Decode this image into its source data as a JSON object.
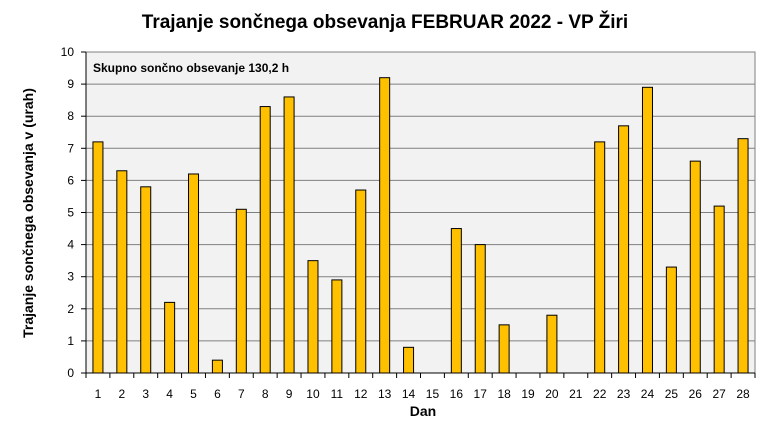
{
  "chart_data": {
    "type": "bar",
    "title": "Trajanje  sončnega obsevanja  FEBRUAR 2022 - VP Žiri",
    "xlabel": "Dan",
    "ylabel": "Trajanje  sončnega obsevanja  v (urah)",
    "annotation": "Skupno sončno obsevanje 130,2 h",
    "categories": [
      "1",
      "2",
      "3",
      "4",
      "5",
      "6",
      "7",
      "8",
      "9",
      "10",
      "11",
      "12",
      "13",
      "14",
      "15",
      "16",
      "17",
      "18",
      "19",
      "20",
      "21",
      "22",
      "23",
      "24",
      "25",
      "26",
      "27",
      "28"
    ],
    "values": [
      7.2,
      6.3,
      5.8,
      2.2,
      6.2,
      0.4,
      5.1,
      8.3,
      8.6,
      3.5,
      2.9,
      5.7,
      9.2,
      0.8,
      0,
      4.5,
      4.0,
      1.5,
      0,
      1.8,
      0,
      7.2,
      7.7,
      8.9,
      3.3,
      6.6,
      5.2,
      7.3
    ],
    "ylim": [
      0,
      10
    ],
    "yticks": [
      "0",
      "1",
      "2",
      "3",
      "4",
      "5",
      "6",
      "7",
      "8",
      "9",
      "10"
    ],
    "grid": true,
    "legend": "none",
    "colors": {
      "bar": "#FFC000",
      "bar_stroke": "#000000",
      "plot_bg": "#F2F2F2",
      "grid": "#808080"
    }
  }
}
